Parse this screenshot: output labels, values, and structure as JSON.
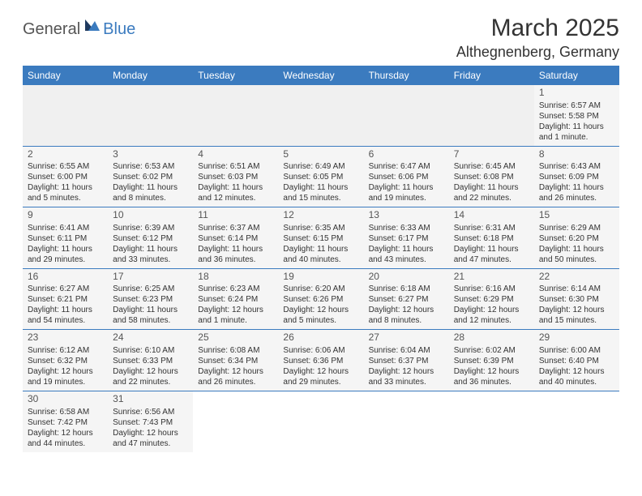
{
  "logo": {
    "text1": "General",
    "text2": "Blue"
  },
  "title": "March 2025",
  "location": "Althegnenberg, Germany",
  "colors": {
    "header_bg": "#3b7bbf",
    "header_text": "#ffffff",
    "cell_bg": "#f5f5f5",
    "blank_bg": "#f0f0f0",
    "border": "#3b7bbf",
    "page_bg": "#ffffff",
    "text": "#333333"
  },
  "typography": {
    "title_fontsize": 30,
    "location_fontsize": 18,
    "dow_fontsize": 12,
    "daynum_fontsize": 12,
    "body_fontsize": 10
  },
  "daysOfWeek": [
    "Sunday",
    "Monday",
    "Tuesday",
    "Wednesday",
    "Thursday",
    "Friday",
    "Saturday"
  ],
  "weeks": [
    [
      null,
      null,
      null,
      null,
      null,
      null,
      {
        "n": "1",
        "sr": "Sunrise: 6:57 AM",
        "ss": "Sunset: 5:58 PM",
        "dl": "Daylight: 11 hours and 1 minute."
      }
    ],
    [
      {
        "n": "2",
        "sr": "Sunrise: 6:55 AM",
        "ss": "Sunset: 6:00 PM",
        "dl": "Daylight: 11 hours and 5 minutes."
      },
      {
        "n": "3",
        "sr": "Sunrise: 6:53 AM",
        "ss": "Sunset: 6:02 PM",
        "dl": "Daylight: 11 hours and 8 minutes."
      },
      {
        "n": "4",
        "sr": "Sunrise: 6:51 AM",
        "ss": "Sunset: 6:03 PM",
        "dl": "Daylight: 11 hours and 12 minutes."
      },
      {
        "n": "5",
        "sr": "Sunrise: 6:49 AM",
        "ss": "Sunset: 6:05 PM",
        "dl": "Daylight: 11 hours and 15 minutes."
      },
      {
        "n": "6",
        "sr": "Sunrise: 6:47 AM",
        "ss": "Sunset: 6:06 PM",
        "dl": "Daylight: 11 hours and 19 minutes."
      },
      {
        "n": "7",
        "sr": "Sunrise: 6:45 AM",
        "ss": "Sunset: 6:08 PM",
        "dl": "Daylight: 11 hours and 22 minutes."
      },
      {
        "n": "8",
        "sr": "Sunrise: 6:43 AM",
        "ss": "Sunset: 6:09 PM",
        "dl": "Daylight: 11 hours and 26 minutes."
      }
    ],
    [
      {
        "n": "9",
        "sr": "Sunrise: 6:41 AM",
        "ss": "Sunset: 6:11 PM",
        "dl": "Daylight: 11 hours and 29 minutes."
      },
      {
        "n": "10",
        "sr": "Sunrise: 6:39 AM",
        "ss": "Sunset: 6:12 PM",
        "dl": "Daylight: 11 hours and 33 minutes."
      },
      {
        "n": "11",
        "sr": "Sunrise: 6:37 AM",
        "ss": "Sunset: 6:14 PM",
        "dl": "Daylight: 11 hours and 36 minutes."
      },
      {
        "n": "12",
        "sr": "Sunrise: 6:35 AM",
        "ss": "Sunset: 6:15 PM",
        "dl": "Daylight: 11 hours and 40 minutes."
      },
      {
        "n": "13",
        "sr": "Sunrise: 6:33 AM",
        "ss": "Sunset: 6:17 PM",
        "dl": "Daylight: 11 hours and 43 minutes."
      },
      {
        "n": "14",
        "sr": "Sunrise: 6:31 AM",
        "ss": "Sunset: 6:18 PM",
        "dl": "Daylight: 11 hours and 47 minutes."
      },
      {
        "n": "15",
        "sr": "Sunrise: 6:29 AM",
        "ss": "Sunset: 6:20 PM",
        "dl": "Daylight: 11 hours and 50 minutes."
      }
    ],
    [
      {
        "n": "16",
        "sr": "Sunrise: 6:27 AM",
        "ss": "Sunset: 6:21 PM",
        "dl": "Daylight: 11 hours and 54 minutes."
      },
      {
        "n": "17",
        "sr": "Sunrise: 6:25 AM",
        "ss": "Sunset: 6:23 PM",
        "dl": "Daylight: 11 hours and 58 minutes."
      },
      {
        "n": "18",
        "sr": "Sunrise: 6:23 AM",
        "ss": "Sunset: 6:24 PM",
        "dl": "Daylight: 12 hours and 1 minute."
      },
      {
        "n": "19",
        "sr": "Sunrise: 6:20 AM",
        "ss": "Sunset: 6:26 PM",
        "dl": "Daylight: 12 hours and 5 minutes."
      },
      {
        "n": "20",
        "sr": "Sunrise: 6:18 AM",
        "ss": "Sunset: 6:27 PM",
        "dl": "Daylight: 12 hours and 8 minutes."
      },
      {
        "n": "21",
        "sr": "Sunrise: 6:16 AM",
        "ss": "Sunset: 6:29 PM",
        "dl": "Daylight: 12 hours and 12 minutes."
      },
      {
        "n": "22",
        "sr": "Sunrise: 6:14 AM",
        "ss": "Sunset: 6:30 PM",
        "dl": "Daylight: 12 hours and 15 minutes."
      }
    ],
    [
      {
        "n": "23",
        "sr": "Sunrise: 6:12 AM",
        "ss": "Sunset: 6:32 PM",
        "dl": "Daylight: 12 hours and 19 minutes."
      },
      {
        "n": "24",
        "sr": "Sunrise: 6:10 AM",
        "ss": "Sunset: 6:33 PM",
        "dl": "Daylight: 12 hours and 22 minutes."
      },
      {
        "n": "25",
        "sr": "Sunrise: 6:08 AM",
        "ss": "Sunset: 6:34 PM",
        "dl": "Daylight: 12 hours and 26 minutes."
      },
      {
        "n": "26",
        "sr": "Sunrise: 6:06 AM",
        "ss": "Sunset: 6:36 PM",
        "dl": "Daylight: 12 hours and 29 minutes."
      },
      {
        "n": "27",
        "sr": "Sunrise: 6:04 AM",
        "ss": "Sunset: 6:37 PM",
        "dl": "Daylight: 12 hours and 33 minutes."
      },
      {
        "n": "28",
        "sr": "Sunrise: 6:02 AM",
        "ss": "Sunset: 6:39 PM",
        "dl": "Daylight: 12 hours and 36 minutes."
      },
      {
        "n": "29",
        "sr": "Sunrise: 6:00 AM",
        "ss": "Sunset: 6:40 PM",
        "dl": "Daylight: 12 hours and 40 minutes."
      }
    ],
    [
      {
        "n": "30",
        "sr": "Sunrise: 6:58 AM",
        "ss": "Sunset: 7:42 PM",
        "dl": "Daylight: 12 hours and 44 minutes."
      },
      {
        "n": "31",
        "sr": "Sunrise: 6:56 AM",
        "ss": "Sunset: 7:43 PM",
        "dl": "Daylight: 12 hours and 47 minutes."
      },
      null,
      null,
      null,
      null,
      null
    ]
  ]
}
